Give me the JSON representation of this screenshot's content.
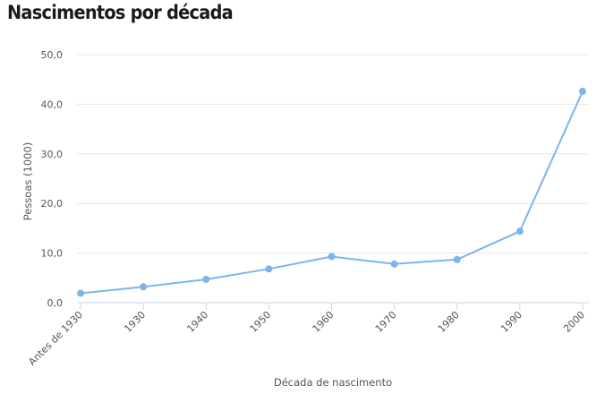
{
  "title": "Nascimentos por década",
  "chart_data": {
    "type": "line",
    "title": "Nascimentos por década",
    "xlabel": "Década de nascimento",
    "ylabel": "Pessoas (1000)",
    "categories": [
      "Antes de 1930",
      "1930",
      "1940",
      "1950",
      "1960",
      "1970",
      "1980",
      "1990",
      "2000"
    ],
    "series": [
      {
        "values": [
          1.9,
          3.2,
          4.7,
          6.8,
          9.3,
          7.8,
          8.7,
          14.4,
          42.6
        ]
      }
    ],
    "ylim": [
      0,
      50
    ],
    "yticks": [
      "0,0",
      "10,0",
      "20,0",
      "30,0",
      "40,0",
      "50,0"
    ],
    "grid": true,
    "colors": {
      "line": "#7cb5ec",
      "grid": "#e6e6e6",
      "axis": "#ccd6eb"
    }
  }
}
